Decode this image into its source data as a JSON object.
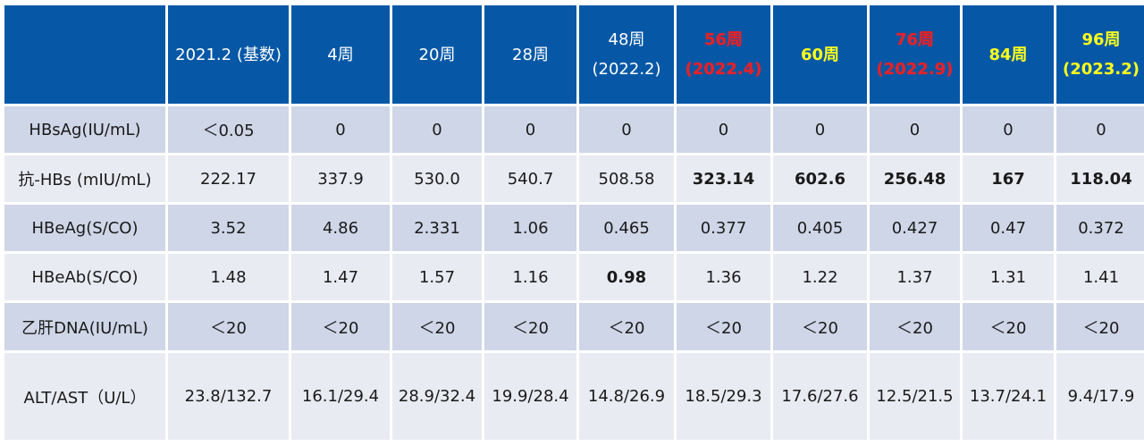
{
  "header": {
    "corner": "",
    "columns": [
      {
        "line1": "2021.2 (基数)",
        "line2": "",
        "style": "normal"
      },
      {
        "line1": "4周",
        "line2": "",
        "style": "normal"
      },
      {
        "line1": "20周",
        "line2": "",
        "style": "normal"
      },
      {
        "line1": "28周",
        "line2": "",
        "style": "normal"
      },
      {
        "line1": "48周",
        "line2": "(2022.2)",
        "style": "normal"
      },
      {
        "line1": "56周",
        "line2": "(2022.4)",
        "style": "red"
      },
      {
        "line1": "60周",
        "line2": "",
        "style": "yellow"
      },
      {
        "line1": "76周",
        "line2": "(2022.9)",
        "style": "red"
      },
      {
        "line1": "84周",
        "line2": "",
        "style": "yellow"
      },
      {
        "line1": "96周",
        "line2": "(2023.2)",
        "style": "yellow"
      }
    ]
  },
  "rows": [
    {
      "label": "HBsAg(IU/mL)",
      "values": [
        "＜0.05",
        "0",
        "0",
        "0",
        "0",
        "0",
        "0",
        "0",
        "0",
        "0"
      ],
      "styles": [
        "",
        "",
        "",
        "",
        "",
        "",
        "",
        "",
        "",
        ""
      ]
    },
    {
      "label": "抗-HBs (mIU/mL)",
      "values": [
        "222.17",
        "337.9",
        "530.0",
        "540.7",
        "508.58",
        "323.14",
        "602.6",
        "256.48",
        "167",
        "118.04"
      ],
      "styles": [
        "",
        "",
        "",
        "",
        "",
        "red",
        "black",
        "red",
        "red",
        "red"
      ]
    },
    {
      "label": "HBeAg(S/CO)",
      "values": [
        "3.52",
        "4.86",
        "2.331",
        "1.06",
        "0.465",
        "0.377",
        "0.405",
        "0.427",
        "0.47",
        "0.372"
      ],
      "styles": [
        "",
        "",
        "",
        "",
        "",
        "",
        "",
        "",
        "",
        ""
      ]
    },
    {
      "label": "HBeAb(S/CO)",
      "values": [
        "1.48",
        "1.47",
        "1.57",
        "1.16",
        "0.98",
        "1.36",
        "1.22",
        "1.37",
        "1.31",
        "1.41"
      ],
      "styles": [
        "",
        "",
        "",
        "",
        "red",
        "",
        "",
        "",
        "",
        ""
      ]
    },
    {
      "label": "乙肝DNA(IU/mL)",
      "values": [
        "＜20",
        "＜20",
        "＜20",
        "＜20",
        "＜20",
        "＜20",
        "＜20",
        "＜20",
        "＜20",
        "＜20"
      ],
      "styles": [
        "",
        "",
        "",
        "",
        "",
        "",
        "",
        "",
        "",
        ""
      ]
    },
    {
      "label": "ALT/AST（U/L）",
      "values": [
        "23.8/132.7",
        "16.1/29.4",
        "28.9/32.4",
        "19.9/28.4",
        "14.8/26.9",
        "18.5/29.3",
        "17.6/27.6",
        "12.5/21.5",
        "13.7/24.1",
        "9.4/17.9"
      ],
      "styles": [
        "",
        "",
        "",
        "",
        "",
        "",
        "",
        "",
        "",
        ""
      ]
    }
  ],
  "colors": {
    "header_bg": "#0658a6",
    "row_odd_bg": "#cfd6e7",
    "row_even_bg": "#e9ebf2",
    "highlight_red": "#e3222a",
    "highlight_yellow": "#ffff1e"
  }
}
